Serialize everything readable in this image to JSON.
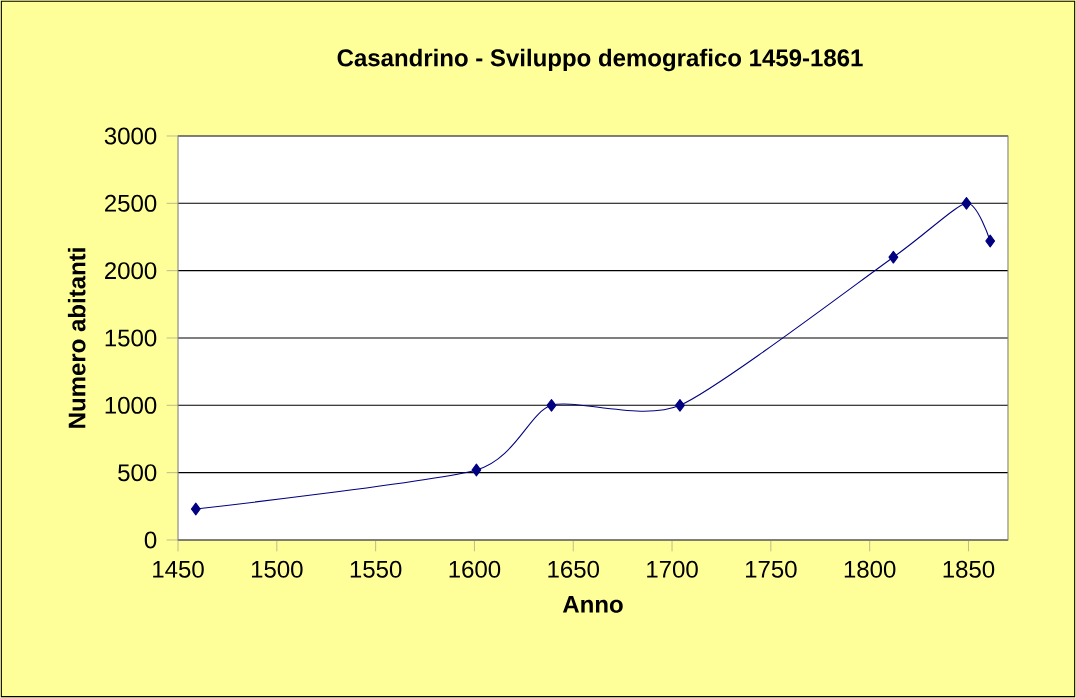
{
  "chart_data": {
    "type": "line",
    "title": "Casandrino - Sviluppo demografico 1459-1861",
    "xlabel": "Anno",
    "ylabel": "Numero abitanti",
    "x": [
      1459,
      1601,
      1639,
      1704,
      1812,
      1849,
      1861
    ],
    "series": [
      {
        "color": "#000080",
        "values": [
          230,
          520,
          1000,
          1000,
          2100,
          2500,
          2220
        ]
      }
    ],
    "xlim": [
      1450,
      1870
    ],
    "xticks": [
      1450,
      1500,
      1550,
      1600,
      1650,
      1700,
      1750,
      1800,
      1850
    ],
    "ylim": [
      0,
      3000
    ],
    "yticks": [
      0,
      500,
      1000,
      1500,
      2000,
      2500,
      3000
    ],
    "grid": "y",
    "marker": "diamond",
    "line_style": "solid"
  }
}
